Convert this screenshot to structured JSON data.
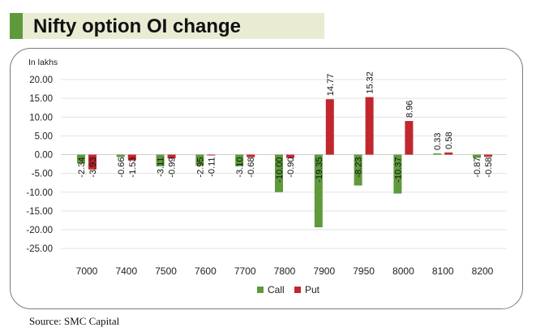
{
  "title": "Nifty option OI change",
  "source": "Source: SMC Capital",
  "chart_data": {
    "type": "bar",
    "unit_label": "In lakhs",
    "categories": [
      "7000",
      "7400",
      "7500",
      "7600",
      "7700",
      "7800",
      "7900",
      "7950",
      "8000",
      "8100",
      "8200"
    ],
    "series": [
      {
        "name": "Call",
        "color": "#5e9a3b",
        "values": [
          -2.34,
          -0.66,
          -3.11,
          -2.95,
          -3.1,
          -10.0,
          -19.35,
          -8.23,
          -10.37,
          0.33,
          -0.87
        ],
        "labels": [
          "-2.34",
          "-0.66",
          "-3.11",
          "-2.95",
          "-3.10",
          "-10.00",
          "-19.35",
          "-8.23",
          "-10.37",
          "0.33",
          "-0.87"
        ]
      },
      {
        "name": "Put",
        "color": "#c1272d",
        "values": [
          -3.93,
          -1.53,
          -0.99,
          -0.11,
          -0.68,
          -0.9,
          14.77,
          15.32,
          8.96,
          0.58,
          -0.58
        ],
        "labels": [
          "-3.93",
          "-1.53",
          "-0.99",
          "-0.11",
          "-0.68",
          "-0.90",
          "14.77",
          "15.32",
          "8.96",
          "0.58",
          "-0.58"
        ]
      }
    ],
    "y_ticks": [
      "20.00",
      "15.00",
      "10.00",
      "5.00",
      "0.00",
      "-5.00",
      "-10.00",
      "-15.00",
      "-20.00",
      "-25.00"
    ],
    "ylim": [
      -25,
      20
    ],
    "grid": true,
    "legend": "bottom-center"
  }
}
